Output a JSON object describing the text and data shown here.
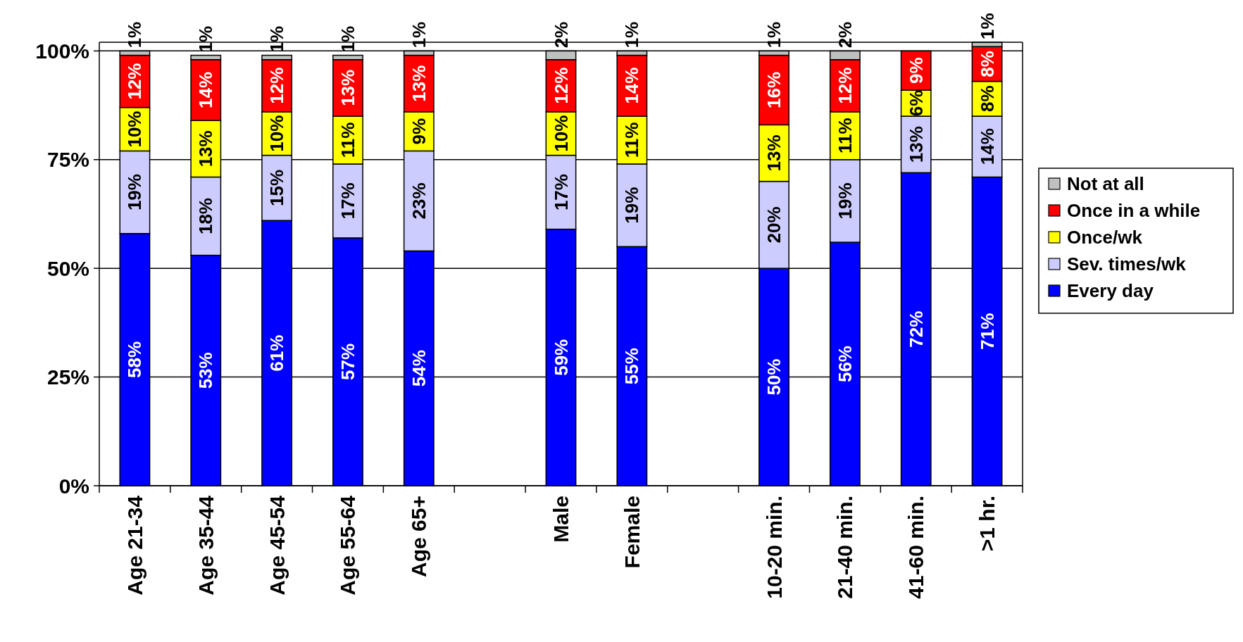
{
  "chart_data": {
    "type": "bar",
    "stacked": true,
    "categories": [
      "Age 21-34",
      "Age 35-44",
      "Age 45-54",
      "Age 55-64",
      "Age 65+",
      null,
      "Male",
      "Female",
      null,
      "10-20 min.",
      "21-40 min.",
      "41-60 min.",
      ">1 hr."
    ],
    "series": [
      {
        "name": "Every day",
        "color": "#0000ff",
        "values": [
          58,
          53,
          61,
          57,
          54,
          null,
          59,
          55,
          null,
          50,
          56,
          72,
          71
        ],
        "value_labels": [
          "58%",
          "53%",
          "61%",
          "57%",
          "54%",
          null,
          "59%",
          "55%",
          null,
          "50%",
          "56%",
          "72%",
          "71%"
        ]
      },
      {
        "name": "Sev. times/wk",
        "color": "#ccccff",
        "values": [
          19,
          18,
          15,
          17,
          23,
          null,
          17,
          19,
          null,
          20,
          19,
          13,
          14
        ],
        "value_labels": [
          "19%",
          "18%",
          "15%",
          "17%",
          "23%",
          null,
          "17%",
          "19%",
          null,
          "20%",
          "19%",
          "13%",
          "14%"
        ]
      },
      {
        "name": "Once/wk",
        "color": "#ffff00",
        "values": [
          10,
          13,
          10,
          11,
          9,
          null,
          10,
          11,
          null,
          13,
          11,
          6,
          8
        ],
        "value_labels": [
          "10%",
          "13%",
          "10%",
          "11%",
          "9%",
          null,
          "10%",
          "11%",
          null,
          "13%",
          "11%",
          "6%",
          "8%"
        ]
      },
      {
        "name": "Once in a while",
        "color": "#ff0000",
        "values": [
          12,
          14,
          12,
          13,
          13,
          null,
          12,
          14,
          null,
          16,
          12,
          9,
          8
        ],
        "value_labels": [
          "12%",
          "14%",
          "12%",
          "13%",
          "13%",
          null,
          "12%",
          "14%",
          null,
          "16%",
          "12%",
          "9%",
          "8%"
        ]
      },
      {
        "name": "Not at all",
        "color": "#c0c0c0",
        "values": [
          1,
          1,
          1,
          1,
          1,
          null,
          2,
          1,
          null,
          1,
          2,
          null,
          1
        ],
        "value_labels": [
          "1%",
          "1%",
          "1%",
          "1%",
          "1%",
          null,
          "2%",
          "1%",
          null,
          "1%",
          "2%",
          null,
          "1%"
        ]
      }
    ],
    "ylim": [
      0,
      102
    ],
    "yticks": [
      {
        "value": 0,
        "label": "0%"
      },
      {
        "value": 25,
        "label": "25%"
      },
      {
        "value": 50,
        "label": "50%"
      },
      {
        "value": 75,
        "label": "75%"
      },
      {
        "value": 100,
        "label": "100%"
      }
    ],
    "grid": "y",
    "legend": "right"
  }
}
